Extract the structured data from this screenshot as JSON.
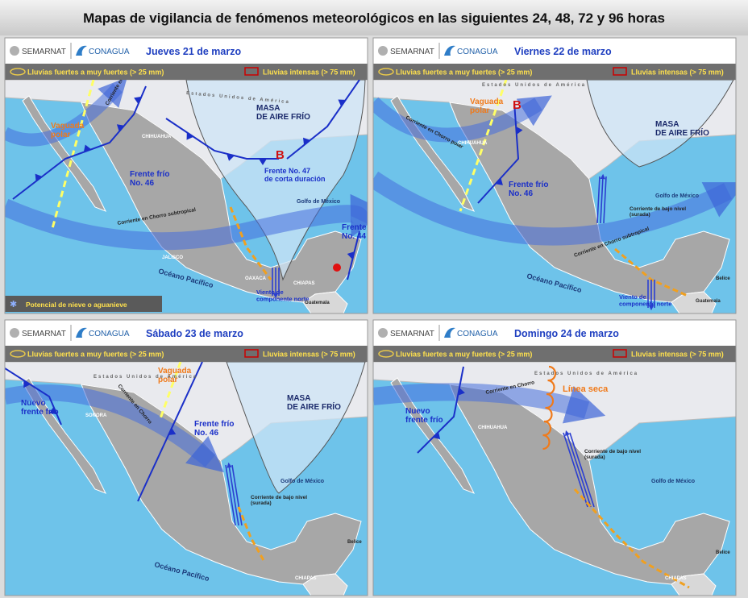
{
  "title": "Mapas de vigilancia de fenómenos meteorológicos en las siguientes 24, 48, 72 y 96 horas",
  "panels": [
    {
      "brand": [
        "SEMARNAT",
        "CONAGUA"
      ],
      "date": "Jueves 21 de marzo",
      "legend": [
        "Lluvias fuertes a muy fuertes (> 25 mm)",
        "Lluvias intensas (> 75 mm)"
      ],
      "labels": [
        [
          "Vaguada",
          "polar"
        ],
        [
          "Corriente en Chorro polar"
        ],
        [
          "Frente frío",
          "No. 46"
        ],
        [
          "MASA",
          "DE AIRE FRÍO"
        ],
        [
          "B"
        ],
        [
          "Frente No. 47",
          "de corta duración"
        ],
        [
          "Golfo de México"
        ],
        [
          "Frente",
          "No. 44"
        ],
        [
          "Corriente en Chorro subtropical"
        ],
        [
          "Océano Pacífico"
        ],
        [
          "Viento de",
          "componente norte"
        ],
        [
          "Estados Unidos de América"
        ],
        [
          "CHIHUAHUA"
        ],
        [
          "JALISCO"
        ],
        [
          "OAXACA"
        ],
        [
          "CHIAPAS"
        ],
        [
          "Guatemala"
        ]
      ],
      "footnote": "Potencial de nieve o aguanieve"
    },
    {
      "brand": [
        "SEMARNAT",
        "CONAGUA"
      ],
      "date": "Viernes 22 de marzo",
      "legend": [
        "Lluvias fuertes a muy fuertes (> 25 mm)",
        "Lluvias intensas (> 75 mm)"
      ],
      "labels": [
        [
          "Vaguada",
          "polar"
        ],
        [
          "B"
        ],
        [
          "MASA",
          "DE AIRE FRÍO"
        ],
        [
          "Frente frío",
          "No. 46"
        ],
        [
          "Corriente en Chorro polar"
        ],
        [
          "Golfo de México"
        ],
        [
          "Corriente de bajo nivel",
          "(surada)"
        ],
        [
          "Corriente en Chorro subtropical"
        ],
        [
          "Océano Pacífico"
        ],
        [
          "Viento de",
          "componente norte"
        ],
        [
          "Estados Unidos de América"
        ],
        [
          "CHIHUAHUA"
        ],
        [
          "Belice"
        ],
        [
          "Guatemala"
        ]
      ]
    },
    {
      "brand": [
        "SEMARNAT",
        "CONAGUA"
      ],
      "date": "Sábado 23 de marzo",
      "legend": [
        "Lluvias fuertes a muy fuertes (> 25 mm)",
        "Lluvias intensas (> 75 mm)"
      ],
      "labels": [
        [
          "Vaguada",
          "polar"
        ],
        [
          "Nuevo",
          "frente frío"
        ],
        [
          "Corriente en Chorro"
        ],
        [
          "MASA",
          "DE AIRE FRÍO"
        ],
        [
          "Frente frío",
          "No. 46"
        ],
        [
          "Golfo de México"
        ],
        [
          "Corriente de bajo nivel",
          "(surada)"
        ],
        [
          "Océano Pacífico"
        ],
        [
          "Estados Unidos de América"
        ],
        [
          "SONORA"
        ],
        [
          "Belice"
        ],
        [
          "CHIAPAS"
        ]
      ]
    },
    {
      "brand": [
        "SEMARNAT",
        "CONAGUA"
      ],
      "date": "Domingo 24 de marzo",
      "legend": [
        "Lluvias fuertes a muy fuertes (> 25 mm)",
        "Lluvias intensas (> 75 mm)"
      ],
      "labels": [
        [
          "Línea seca"
        ],
        [
          "Nuevo",
          "frente frío"
        ],
        [
          "Corriente en Chorro"
        ],
        [
          "Corriente de bajo nivel",
          "(surada)"
        ],
        [
          "Golfo de México"
        ],
        [
          "Estados Unidos de América"
        ],
        [
          "CHIHUAHUA"
        ],
        [
          "Belice"
        ],
        [
          "CHIAPAS"
        ]
      ]
    }
  ]
}
